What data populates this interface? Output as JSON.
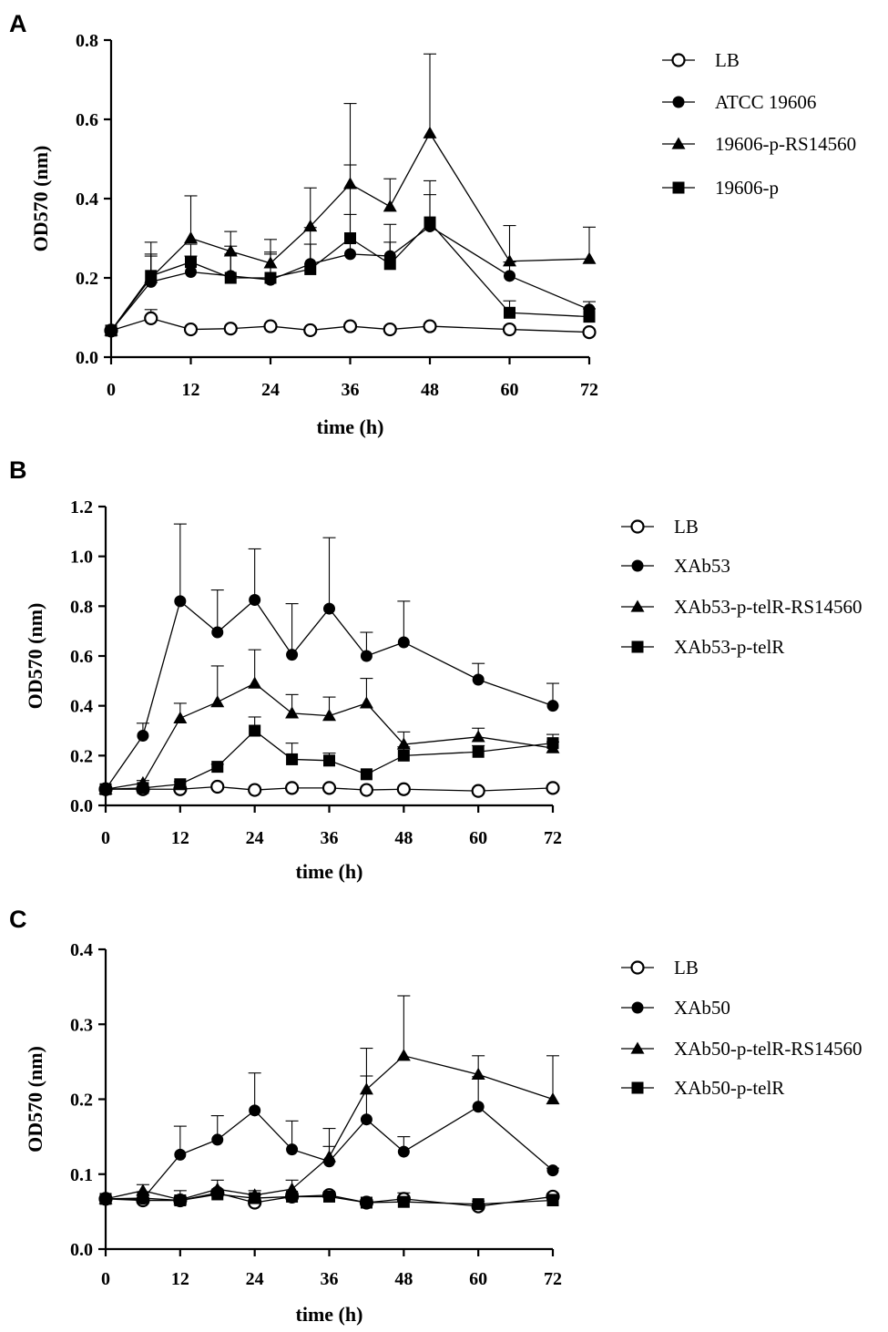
{
  "chart_data": [
    {
      "type": "line",
      "panel": "A",
      "xlabel": "time (h)",
      "ylabel": "OD570 (nm)",
      "xlim": [
        0,
        72
      ],
      "ylim": [
        0,
        0.8
      ],
      "xticks": [
        0,
        12,
        24,
        36,
        48,
        60,
        72
      ],
      "xtick_labels": [
        "0",
        "12",
        "24",
        "36",
        "48",
        "60",
        "72"
      ],
      "yticks": [
        0,
        0.2,
        0.4,
        0.6,
        0.8
      ],
      "ytick_labels": [
        "0.0",
        "0.2",
        "0.4",
        "0.6",
        "0.8"
      ],
      "x": [
        0,
        6,
        12,
        18,
        24,
        30,
        36,
        42,
        48,
        60,
        72
      ],
      "series": [
        {
          "name": "LB",
          "marker": "circle-open",
          "values": [
            0.067,
            0.098,
            0.07,
            0.072,
            0.078,
            0.068,
            0.078,
            0.07,
            0.078,
            0.07,
            0.063
          ],
          "errors": [
            0.005,
            0.022,
            0.005,
            0.005,
            0.006,
            0.005,
            0.006,
            0.005,
            0.006,
            0.005,
            0.005
          ]
        },
        {
          "name": "ATCC 19606",
          "marker": "circle-filled",
          "values": [
            0.067,
            0.19,
            0.215,
            0.205,
            0.195,
            0.235,
            0.26,
            0.255,
            0.33,
            0.205,
            0.12
          ],
          "errors": [
            0.005,
            0.065,
            0.04,
            0.075,
            0.07,
            0.05,
            0.1,
            0.08,
            0.08,
            0.035,
            0.02
          ]
        },
        {
          "name": "19606-p-RS14560",
          "marker": "triangle-filled",
          "values": [
            0.067,
            0.2,
            0.3,
            0.267,
            0.237,
            0.33,
            0.437,
            0.38,
            0.565,
            0.242,
            0.248
          ],
          "errors": [
            0.005,
            0.09,
            0.107,
            0.05,
            0.06,
            0.097,
            0.203,
            0.07,
            0.2,
            0.09,
            0.08
          ]
        },
        {
          "name": "19606-p",
          "marker": "square-filled",
          "values": [
            0.067,
            0.205,
            0.24,
            0.2,
            0.2,
            0.222,
            0.3,
            0.235,
            0.34,
            0.112,
            0.102
          ],
          "errors": [
            0.005,
            0.055,
            0.045,
            0.06,
            0.06,
            0.105,
            0.185,
            0.055,
            0.105,
            0.03,
            0.02
          ]
        }
      ]
    },
    {
      "type": "line",
      "panel": "B",
      "xlabel": "time (h)",
      "ylabel": "OD570 (nm)",
      "xlim": [
        0,
        72
      ],
      "ylim": [
        0,
        1.2
      ],
      "xticks": [
        0,
        12,
        24,
        36,
        48,
        60,
        72
      ],
      "xtick_labels": [
        "0",
        "12",
        "24",
        "36",
        "48",
        "60",
        "72"
      ],
      "yticks": [
        0,
        0.2,
        0.4,
        0.6,
        0.8,
        1.0,
        1.2
      ],
      "ytick_labels": [
        "0.0",
        "0.2",
        "0.4",
        "0.6",
        "0.8",
        "1.0",
        "1.2"
      ],
      "x": [
        0,
        6,
        12,
        18,
        24,
        30,
        36,
        42,
        48,
        60,
        72
      ],
      "series": [
        {
          "name": "LB",
          "marker": "circle-open",
          "values": [
            0.065,
            0.065,
            0.065,
            0.075,
            0.062,
            0.07,
            0.07,
            0.062,
            0.065,
            0.058,
            0.07
          ],
          "errors": [
            0.005,
            0.005,
            0.005,
            0.005,
            0.005,
            0.005,
            0.005,
            0.005,
            0.005,
            0.005,
            0.005
          ]
        },
        {
          "name": "XAb53",
          "marker": "circle-filled",
          "values": [
            0.065,
            0.28,
            0.82,
            0.695,
            0.825,
            0.605,
            0.79,
            0.6,
            0.655,
            0.505,
            0.4
          ],
          "errors": [
            0.005,
            0.05,
            0.31,
            0.17,
            0.205,
            0.205,
            0.285,
            0.095,
            0.165,
            0.065,
            0.09
          ]
        },
        {
          "name": "XAb53-p-telR-RS14560",
          "marker": "triangle-filled",
          "values": [
            0.065,
            0.09,
            0.35,
            0.415,
            0.49,
            0.37,
            0.36,
            0.41,
            0.245,
            0.275,
            0.23
          ],
          "errors": [
            0.005,
            0.01,
            0.06,
            0.145,
            0.135,
            0.075,
            0.075,
            0.1,
            0.05,
            0.035,
            0.025
          ]
        },
        {
          "name": "XAb53-p-telR",
          "marker": "square-filled",
          "values": [
            0.065,
            0.07,
            0.085,
            0.155,
            0.3,
            0.185,
            0.18,
            0.125,
            0.2,
            0.215,
            0.25
          ],
          "errors": [
            0.005,
            0.005,
            0.01,
            0.01,
            0.055,
            0.065,
            0.03,
            0.01,
            0.035,
            0.025,
            0.035
          ]
        }
      ]
    },
    {
      "type": "line",
      "panel": "C",
      "xlabel": "time (h)",
      "ylabel": "OD570 (nm)",
      "xlim": [
        0,
        72
      ],
      "ylim": [
        0,
        0.4
      ],
      "xticks": [
        0,
        12,
        24,
        36,
        48,
        60,
        72
      ],
      "xtick_labels": [
        "0",
        "12",
        "24",
        "36",
        "48",
        "60",
        "72"
      ],
      "yticks": [
        0,
        0.1,
        0.2,
        0.3,
        0.4
      ],
      "ytick_labels": [
        "0.0",
        "0.1",
        "0.2",
        "0.3",
        "0.4"
      ],
      "x": [
        0,
        6,
        12,
        18,
        24,
        30,
        36,
        42,
        48,
        60,
        72
      ],
      "series": [
        {
          "name": "LB",
          "marker": "circle-open",
          "values": [
            0.067,
            0.065,
            0.065,
            0.075,
            0.062,
            0.07,
            0.072,
            0.062,
            0.067,
            0.057,
            0.07
          ],
          "errors": [
            0.003,
            0.003,
            0.004,
            0.004,
            0.003,
            0.004,
            0.004,
            0.003,
            0.008,
            0.004,
            0.004
          ]
        },
        {
          "name": "XAb50",
          "marker": "circle-filled",
          "values": [
            0.067,
            0.067,
            0.126,
            0.146,
            0.185,
            0.133,
            0.117,
            0.173,
            0.13,
            0.19,
            0.105
          ],
          "errors": [
            0.003,
            0.005,
            0.038,
            0.032,
            0.05,
            0.038,
            0.02,
            0.058,
            0.02,
            0.04,
            0.003
          ]
        },
        {
          "name": "XAb50-p-telR-RS14560",
          "marker": "triangle-filled",
          "values": [
            0.067,
            0.078,
            0.066,
            0.08,
            0.072,
            0.08,
            0.123,
            0.213,
            0.258,
            0.233,
            0.2
          ],
          "errors": [
            0.003,
            0.008,
            0.012,
            0.012,
            0.006,
            0.012,
            0.038,
            0.055,
            0.08,
            0.025,
            0.058
          ]
        },
        {
          "name": "XAb50-p-telR",
          "marker": "square-filled",
          "values": [
            0.067,
            0.068,
            0.065,
            0.073,
            0.068,
            0.07,
            0.07,
            0.062,
            0.063,
            0.06,
            0.065
          ],
          "errors": [
            0.003,
            0.004,
            0.005,
            0.005,
            0.004,
            0.005,
            0.005,
            0.004,
            0.005,
            0.004,
            0.008
          ]
        }
      ]
    }
  ]
}
